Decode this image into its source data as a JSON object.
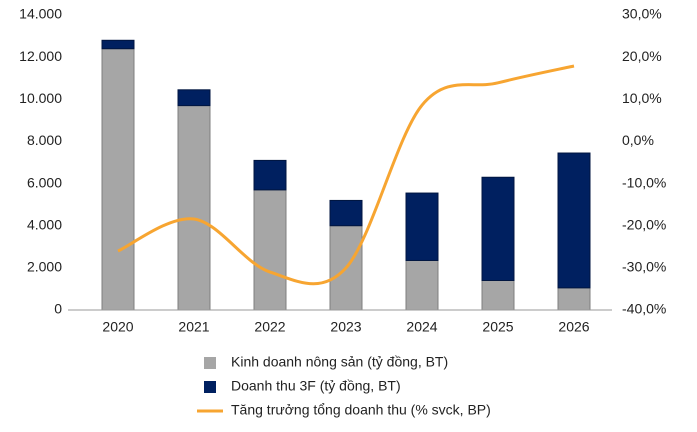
{
  "chart_data": {
    "type": "bar-line",
    "categories": [
      "2020",
      "2021",
      "2022",
      "2023",
      "2024",
      "2025",
      "2026"
    ],
    "series": [
      {
        "name": "Kinh doanh nông sản (tỷ đồng, BT)",
        "type": "bar",
        "color": "#a6a6a6",
        "values": [
          12400,
          9700,
          5700,
          4000,
          2350,
          1400,
          1050
        ]
      },
      {
        "name": "Doanh thu 3F (tỷ đồng, BT)",
        "type": "bar",
        "color": "#002060",
        "values": [
          400,
          750,
          1400,
          1200,
          3200,
          4900,
          6400
        ]
      },
      {
        "name": "Tăng trưởng tổng doanh thu (% svck, BP)",
        "type": "line",
        "axis": "y2",
        "color": "#f7a531",
        "values": [
          -26,
          -18.4,
          -31,
          -30,
          8.6,
          13.9,
          17.9
        ]
      }
    ],
    "ylim": [
      0,
      14000
    ],
    "yticks": [
      {
        "value": 0,
        "label": "0"
      },
      {
        "value": 2000,
        "label": "2.000"
      },
      {
        "value": 4000,
        "label": "4.000"
      },
      {
        "value": 6000,
        "label": "6.000"
      },
      {
        "value": 8000,
        "label": "8.000"
      },
      {
        "value": 10000,
        "label": "10.000"
      },
      {
        "value": 12000,
        "label": "12.000"
      },
      {
        "value": 14000,
        "label": "14.000"
      }
    ],
    "y2lim": [
      -40,
      30
    ],
    "y2ticks": [
      {
        "value": -40,
        "label": "-40,0%"
      },
      {
        "value": -30,
        "label": "-30,0%"
      },
      {
        "value": -20,
        "label": "-20,0%"
      },
      {
        "value": -10,
        "label": "-10,0%"
      },
      {
        "value": 0,
        "label": "0,0%"
      },
      {
        "value": 10,
        "label": "10,0%"
      },
      {
        "value": 20,
        "label": "20,0%"
      },
      {
        "value": 30,
        "label": "30,0%"
      }
    ],
    "stacked": true
  }
}
